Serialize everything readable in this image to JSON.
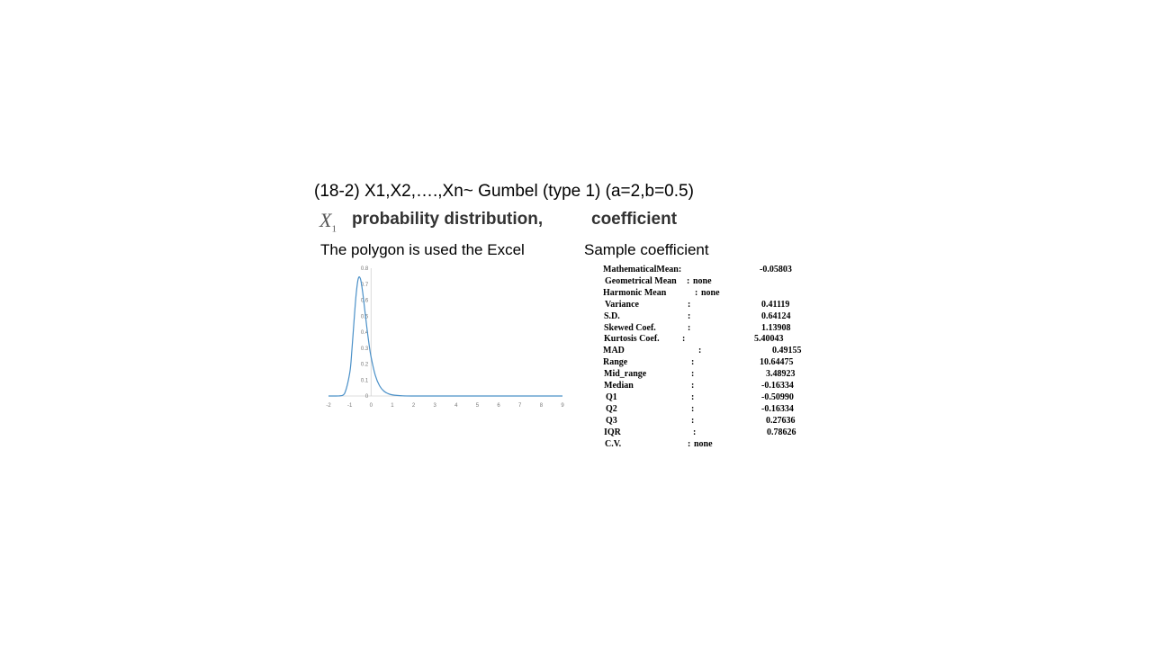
{
  "slide": {
    "title": "(18-2) X1,X2,….,Xn~ Gumbel (type 1) (a=2,b=0.5)",
    "symbol": "X",
    "symbol_sub": "1",
    "subtitle": "probability distribution,",
    "subtitle2": "coefficient",
    "polygon_label": "The polygon is used the Excel",
    "sample_label": "Sample coefficient"
  },
  "stats": [
    {
      "label": "MathematicalMean:",
      "sep": "",
      "value": "-0.05803"
    },
    {
      "label": "Geometrical Mean",
      "sep": ":",
      "value": "none"
    },
    {
      "label": "Harmonic Mean",
      "sep": ":",
      "value": "none"
    },
    {
      "label": "Variance",
      "sep": ":",
      "value": "0.41119"
    },
    {
      "label": "S.D.",
      "sep": ":",
      "value": "0.64124"
    },
    {
      "label": "Skewed Coef.",
      "sep": ":",
      "value": "1.13908"
    },
    {
      "label": "Kurtosis Coef.",
      "sep": ":",
      "value": "5.40043"
    },
    {
      "label": "MAD",
      "sep": ":",
      "value": "0.49155"
    },
    {
      "label": "Range",
      "sep": ":",
      "value": "10.64475"
    },
    {
      "label": "Mid_range",
      "sep": ":",
      "value": "3.48923"
    },
    {
      "label": "Median",
      "sep": ":",
      "value": "-0.16334"
    },
    {
      "label": "Q1",
      "sep": ":",
      "value": "-0.50990"
    },
    {
      "label": "Q2",
      "sep": ":",
      "value": "-0.16334"
    },
    {
      "label": "Q3",
      "sep": ":",
      "value": "0.27636"
    },
    {
      "label": "IQR",
      "sep": ":",
      "value": "0.78626"
    },
    {
      "label": "C.V.",
      "sep": ":",
      "value": "none"
    }
  ],
  "chart_data": {
    "type": "line",
    "title": "",
    "xlabel": "",
    "ylabel": "",
    "xlim": [
      -2,
      9
    ],
    "ylim": [
      0,
      0.8
    ],
    "x_ticks": [
      "-2",
      "-1",
      "0",
      "1",
      "2",
      "3",
      "4",
      "5",
      "6",
      "7",
      "8",
      "9"
    ],
    "y_ticks": [
      "0",
      "0.1",
      "0.2",
      "0.3",
      "0.4",
      "0.5",
      "0.6",
      "0.7",
      "0.8"
    ],
    "grid": false,
    "line_color": "#4a90c8",
    "series": [
      {
        "x": [
          -2,
          -1.5,
          -1.25,
          -1,
          -0.9,
          -0.8,
          -0.7,
          -0.6,
          -0.5,
          -0.4,
          -0.3,
          -0.2,
          -0.1,
          0,
          0.2,
          0.4,
          0.6,
          0.8,
          1,
          1.5,
          2,
          2.5,
          3,
          4,
          5,
          6,
          7,
          8,
          9
        ],
        "values": [
          0,
          0.0006,
          0.014,
          0.146,
          0.288,
          0.469,
          0.637,
          0.735,
          0.734,
          0.656,
          0.545,
          0.432,
          0.33,
          0.245,
          0.129,
          0.064,
          0.031,
          0.015,
          0.007,
          0.001,
          0,
          0,
          0,
          0,
          0,
          0,
          0,
          0,
          0
        ]
      }
    ]
  }
}
